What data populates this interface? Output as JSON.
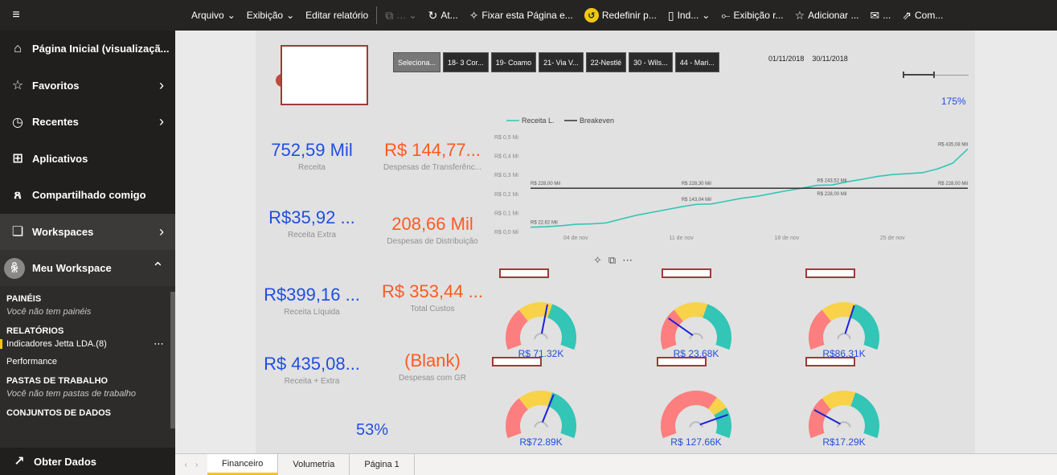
{
  "toolbar": {
    "menu_icon": "hamburger-icon",
    "arquivo": "Arquivo",
    "exibicao": "Exibição",
    "editar": "Editar relatório",
    "at": "At...",
    "fixar": "Fixar esta Página e...",
    "redefinir": "Redefinir p...",
    "ind": "Ind...",
    "exibicao_r": "Exibição r...",
    "adicionar": "Adicionar ...",
    "email": "...",
    "com": "Com..."
  },
  "sidebar": {
    "items": [
      {
        "label": "Página Inicial (visualizaçã...",
        "icon": "home-icon"
      },
      {
        "label": "Favoritos",
        "icon": "star-icon"
      },
      {
        "label": "Recentes",
        "icon": "clock-icon"
      },
      {
        "label": "Aplicativos",
        "icon": "apps-icon"
      },
      {
        "label": "Compartilhado comigo",
        "icon": "share-icon"
      },
      {
        "label": "Workspaces",
        "icon": "workspace-icon"
      },
      {
        "label": "Meu Workspace",
        "icon": "avatar-icon"
      }
    ],
    "paineis": "PAINÉIS",
    "paineis_msg": "Você não tem painéis",
    "relatorios": "RELATÓRIOS",
    "rel_items": [
      "Indicadores Jetta LDA.(8)",
      "Performance"
    ],
    "pastas": "PASTAS DE TRABALHO",
    "pastas_msg": "Você não tem pastas de trabalho",
    "conjuntos": "CONJUNTOS DE DADOS",
    "obter": "Obter Dados"
  },
  "report": {
    "chips": [
      "Seleciona...",
      "18- 3 Cor...",
      "19- Coamo",
      "21- Via V...",
      "22-Nestlé",
      "30 - Wils...",
      "44 - Mari..."
    ],
    "date_from": "01/11/2018",
    "date_to": "30/11/2018",
    "pct_175": "175%",
    "pct_53": "53%",
    "kpis": [
      {
        "value": "752,59 Mil",
        "label": "Receita"
      },
      {
        "value": "R$ 144,77...",
        "label": "Despesas de Transferênc..."
      },
      {
        "value": "R$35,92 ...",
        "label": "Receita Extra"
      },
      {
        "value": "208,66 Mil",
        "label": "Despesas de Distribuição"
      },
      {
        "value": "R$399,16 ...",
        "label": "Receita Líquida"
      },
      {
        "value": "R$ 353,44 ...",
        "label": "Total Custos"
      },
      {
        "value": "R$ 435,08...",
        "label": "Receita + Extra"
      },
      {
        "value": "(Blank)",
        "label": "Despesas com GR"
      }
    ],
    "gauges": [
      {
        "value": "R$ 71.32K",
        "level": 0.55
      },
      {
        "value": "R$ 23.68K",
        "level": 0.25
      },
      {
        "value": "R$86.31K",
        "level": 0.58
      },
      {
        "value": "R$72.89K",
        "level": 0.6
      },
      {
        "value": "R$ 127.66K",
        "level": 0.82
      },
      {
        "value": "R$17.29K",
        "level": 0.22
      }
    ],
    "colors": {
      "red": "#fd7e7e",
      "yellow": "#f8d248",
      "teal": "#33c5b6",
      "needle": "#1d21d8"
    }
  },
  "chart_data": {
    "type": "line",
    "legend": [
      "Receita L.",
      "Breakeven"
    ],
    "legend_position": "top-left",
    "y_ticks": [
      "R$ 0,5 Mi",
      "R$ 0,4 Mi",
      "R$ 0,3 Mi",
      "R$ 0,2 Mi",
      "R$ 0,1 Mi",
      "R$ 0,0 Mi"
    ],
    "x_ticks": [
      "04 de nov",
      "11 de nov",
      "18 de nov",
      "25 de nov"
    ],
    "ylim": [
      0,
      500
    ],
    "x": [
      1,
      2,
      3,
      4,
      5,
      6,
      7,
      8,
      9,
      10,
      11,
      12,
      13,
      14,
      15,
      16,
      17,
      18,
      19,
      20,
      21,
      22,
      23,
      24,
      25,
      26,
      27,
      28,
      29,
      30
    ],
    "series": [
      {
        "name": "Receita L.",
        "values": [
          22.62,
          25,
          30,
          38,
          40,
          45,
          65,
          85,
          100,
          115,
          130,
          143.04,
          145,
          160,
          175,
          185,
          200,
          215,
          228,
          243.52,
          245,
          262,
          275,
          290,
          300,
          305,
          310,
          330,
          360,
          435.08
        ]
      },
      {
        "name": "Breakeven",
        "values": [
          228,
          228,
          228,
          228,
          228,
          228,
          228,
          228,
          228,
          228,
          228,
          228.3,
          228,
          228,
          228,
          228,
          228,
          228,
          228,
          228,
          228,
          228,
          228,
          228,
          228,
          228,
          228,
          228,
          228,
          228
        ]
      }
    ],
    "labels": [
      {
        "text": "R$ 228,00 Mil",
        "x": 1,
        "y": 228
      },
      {
        "text": "R$ 228,30 Mil",
        "x": 12,
        "y": 228.3
      },
      {
        "text": "R$ 243,52 Mil",
        "x": 20,
        "y": 243.52
      },
      {
        "text": "R$ 228,00 Mil",
        "x": 20,
        "y": 228
      },
      {
        "text": "R$ 228,00 Mil",
        "x": 30,
        "y": 228
      },
      {
        "text": "R$ 143,04 Mil",
        "x": 12,
        "y": 143.04
      },
      {
        "text": "R$ 22,62 Mil",
        "x": 1,
        "y": 22.62
      },
      {
        "text": "R$ 435,08 Mil",
        "x": 30,
        "y": 435.08
      }
    ]
  }
}
